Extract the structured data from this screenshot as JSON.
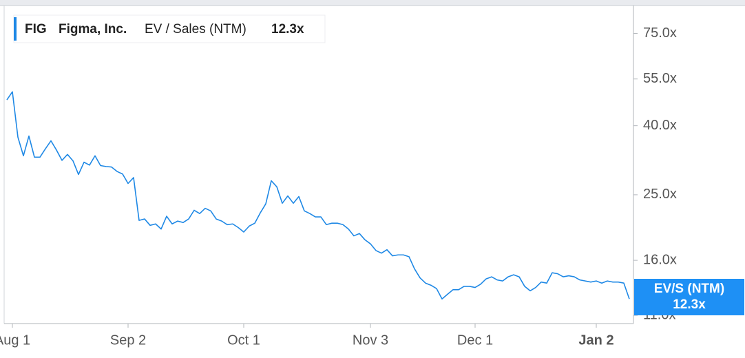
{
  "chart_data": {
    "type": "line",
    "header": {
      "ticker": "FIG",
      "name": "Figma, Inc.",
      "metric": "EV / Sales (NTM)",
      "last_label": "12.3x"
    },
    "badge": {
      "label": "EV/S (NTM)",
      "value_label": "12.3x"
    },
    "categories": [
      null,
      "Aug 1",
      null,
      null,
      null,
      null,
      null,
      null,
      null,
      null,
      null,
      null,
      null,
      null,
      null,
      null,
      null,
      null,
      null,
      null,
      null,
      null,
      "Sep 2",
      null,
      null,
      null,
      null,
      null,
      null,
      null,
      null,
      null,
      null,
      null,
      null,
      null,
      null,
      null,
      null,
      null,
      null,
      null,
      null,
      "Oct 1",
      null,
      null,
      null,
      null,
      null,
      null,
      null,
      null,
      null,
      null,
      null,
      null,
      null,
      null,
      null,
      null,
      null,
      null,
      null,
      null,
      null,
      null,
      "Nov 3",
      null,
      null,
      null,
      null,
      null,
      null,
      null,
      null,
      null,
      null,
      null,
      null,
      null,
      null,
      null,
      null,
      null,
      null,
      "Dec 1",
      null,
      null,
      null,
      null,
      null,
      null,
      null,
      null,
      null,
      null,
      null,
      null,
      null,
      null,
      null,
      null,
      null,
      null,
      null,
      null,
      null,
      "Jan 2",
      null,
      null,
      null,
      null,
      null,
      null
    ],
    "series": [
      {
        "name": "EV / Sales (NTM)",
        "color": "#1e88e5",
        "values": [
          47.7,
          50.4,
          37.0,
          32.6,
          37.3,
          32.3,
          32.3,
          34.2,
          36.1,
          33.9,
          31.6,
          32.9,
          31.5,
          28.7,
          31.2,
          30.6,
          32.6,
          30.5,
          30.3,
          30.2,
          29.3,
          28.8,
          27.0,
          28.1,
          21.0,
          21.2,
          20.3,
          20.5,
          19.8,
          21.6,
          20.5,
          20.9,
          20.7,
          21.2,
          22.5,
          22.0,
          22.8,
          22.4,
          21.2,
          20.9,
          20.4,
          20.5,
          20.0,
          19.4,
          20.2,
          20.6,
          22.1,
          23.5,
          27.5,
          26.4,
          23.6,
          24.8,
          23.6,
          24.7,
          22.4,
          22.0,
          21.5,
          21.5,
          20.4,
          20.6,
          20.6,
          20.4,
          19.8,
          18.9,
          19.2,
          18.4,
          17.9,
          17.1,
          16.8,
          17.2,
          16.5,
          16.6,
          16.6,
          16.4,
          15.1,
          14.2,
          13.7,
          13.5,
          13.2,
          12.3,
          12.7,
          13.1,
          13.1,
          13.4,
          13.4,
          13.3,
          13.6,
          14.1,
          14.3,
          14.0,
          13.9,
          14.3,
          14.5,
          14.3,
          13.4,
          13.0,
          13.3,
          13.8,
          13.7,
          14.7,
          14.6,
          14.3,
          14.4,
          14.3,
          14.0,
          13.9,
          13.8,
          13.9,
          13.7,
          13.9,
          13.8,
          13.8,
          13.7,
          12.3
        ]
      }
    ],
    "ylim": [
      10.4,
      90.7
    ],
    "log_y": true,
    "yticks": [
      {
        "value": 11,
        "label": "11.0x"
      },
      {
        "value": 16,
        "label": "16.0x"
      },
      {
        "value": 25,
        "label": "25.0x"
      },
      {
        "value": 40,
        "label": "40.0x"
      },
      {
        "value": 55,
        "label": "55.0x"
      },
      {
        "value": 75,
        "label": "75.0x"
      }
    ]
  }
}
